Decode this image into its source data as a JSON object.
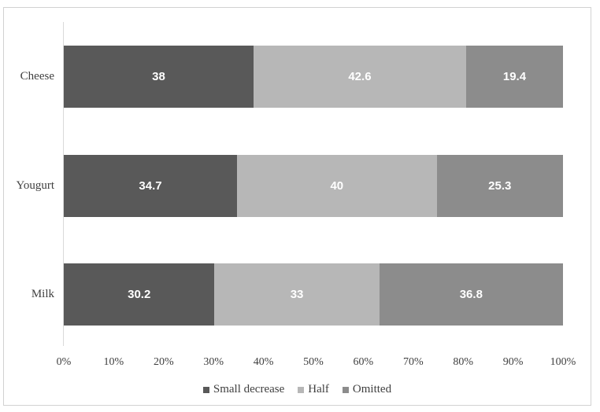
{
  "chart_data": {
    "type": "bar",
    "orientation": "horizontal",
    "stacked": true,
    "title": "",
    "xlabel": "",
    "ylabel": "",
    "categories": [
      "Cheese",
      "Yougurt",
      "Milk"
    ],
    "series": [
      {
        "name": "Small decrease",
        "color": "#595959",
        "values": [
          38,
          34.7,
          30.2
        ]
      },
      {
        "name": "Half",
        "color": "#b7b7b7",
        "values": [
          42.6,
          40,
          33
        ]
      },
      {
        "name": "Omitted",
        "color": "#8c8c8c",
        "values": [
          19.4,
          25.3,
          36.8
        ]
      }
    ],
    "value_labels": [
      [
        "38",
        "42.6",
        "19.4"
      ],
      [
        "34.7",
        "40",
        "25.3"
      ],
      [
        "30.2",
        "33",
        "36.8"
      ]
    ],
    "x_ticks": [
      "0%",
      "10%",
      "20%",
      "30%",
      "40%",
      "50%",
      "60%",
      "70%",
      "80%",
      "90%",
      "100%"
    ],
    "xlim": [
      0,
      100
    ],
    "grid": false,
    "legend_position": "bottom",
    "colors": {
      "value_label_text": "#ffffff",
      "axis_text": "#404040",
      "axis_line": "#d9d9d9",
      "frame_border": "#d2d2d2",
      "background": "#ffffff"
    }
  }
}
